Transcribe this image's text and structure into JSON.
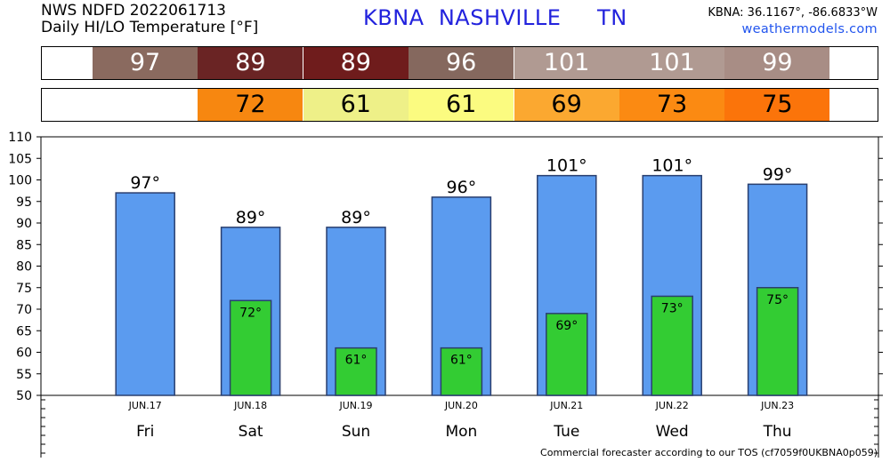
{
  "header": {
    "line1": "NWS NDFD 2022061713",
    "line2": "Daily HI/LO Temperature [°F]",
    "station": "KBNA  NASHVILLE     TN",
    "coords": "KBNA: 36.1167°, -86.6833°W",
    "site": "weathermodels.com"
  },
  "footer": "Commercial forecaster according to our TOS (cf7059f0UKBNA0p059)",
  "colors": {
    "hi_bar": "#5b9bef",
    "lo_bar": "#33cc33",
    "bar_border": "#2a3f6f",
    "hi_cells": [
      "#8a6a5f",
      "#6a2424",
      "#6f1c1c",
      "#85685e",
      "#b09a92",
      "#b09a92",
      "#a88d85"
    ],
    "lo_cells": [
      null,
      "#f78710",
      "#eef088",
      "#fbfb80",
      "#fba830",
      "#fb8a12",
      "#fb740a"
    ]
  },
  "chart_data": {
    "type": "bar",
    "categories": [
      "Fri",
      "Sat",
      "Sun",
      "Mon",
      "Tue",
      "Wed",
      "Thu"
    ],
    "dates": [
      "JUN.17",
      "JUN.18",
      "JUN.19",
      "JUN.20",
      "JUN.21",
      "JUN.22",
      "JUN.23"
    ],
    "series": [
      {
        "name": "HI",
        "values": [
          97,
          89,
          89,
          96,
          101,
          101,
          99
        ]
      },
      {
        "name": "LO",
        "values": [
          null,
          72,
          61,
          61,
          69,
          73,
          75
        ]
      }
    ],
    "ylim": [
      50,
      110
    ],
    "yticks": [
      "50",
      "55",
      "60",
      "65",
      "70",
      "75",
      "80",
      "85",
      "90",
      "95",
      "100",
      "105",
      "110"
    ],
    "hi_labels": [
      "97°",
      "89°",
      "89°",
      "96°",
      "101°",
      "101°",
      "99°"
    ],
    "lo_labels": [
      "",
      "72°",
      "61°",
      "61°",
      "69°",
      "73°",
      "75°"
    ],
    "hi_strip": [
      "97",
      "89",
      "89",
      "96",
      "101",
      "101",
      "99"
    ],
    "lo_strip": [
      "",
      "72",
      "61",
      "61",
      "69",
      "73",
      "75"
    ]
  }
}
